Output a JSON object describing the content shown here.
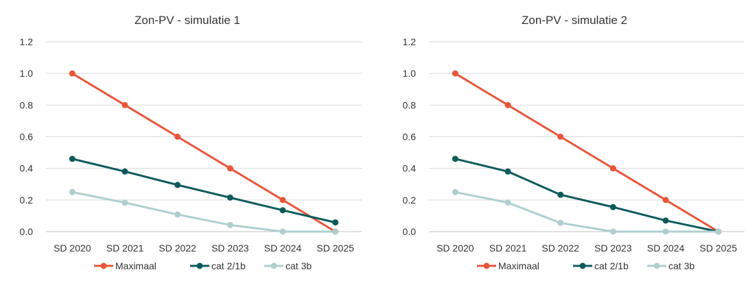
{
  "chart_data": [
    {
      "type": "line",
      "title": "Zon-PV - simulatie 1",
      "xlabel": "",
      "ylabel": "",
      "categories": [
        "SD 2020",
        "SD 2021",
        "SD 2022",
        "SD 2023",
        "SD 2024",
        "SD 2025"
      ],
      "y_ticks": [
        "0.0",
        "0.2",
        "0.4",
        "0.6",
        "0.8",
        "1.0",
        "1.2"
      ],
      "ylim": [
        0,
        1.2
      ],
      "grid": "horizontal",
      "legend_position": "bottom",
      "series": [
        {
          "name": "Maximaal",
          "color": "#e8553a",
          "values": [
            1.0,
            0.8,
            0.6,
            0.4,
            0.2,
            0.0
          ]
        },
        {
          "name": "cat 2/1b",
          "color": "#0d5a5b",
          "values": [
            0.46,
            0.38,
            0.295,
            0.215,
            0.135,
            0.058
          ]
        },
        {
          "name": "cat 3b",
          "color": "#aecfcd",
          "values": [
            0.25,
            0.183,
            0.108,
            0.042,
            0.0,
            0.0
          ]
        }
      ]
    },
    {
      "type": "line",
      "title": "Zon-PV - simulatie 2",
      "xlabel": "",
      "ylabel": "",
      "categories": [
        "SD 2020",
        "SD 2021",
        "SD 2022",
        "SD 2023",
        "SD 2024",
        "SD 2025"
      ],
      "y_ticks": [
        "0.0",
        "0.2",
        "0.4",
        "0.6",
        "0.8",
        "1.0",
        "1.2"
      ],
      "ylim": [
        0,
        1.2
      ],
      "grid": "horizontal",
      "legend_position": "bottom",
      "series": [
        {
          "name": "Maximaal",
          "color": "#e8553a",
          "values": [
            1.0,
            0.8,
            0.6,
            0.4,
            0.2,
            0.0
          ]
        },
        {
          "name": "cat 2/1b",
          "color": "#0d5a5b",
          "values": [
            0.46,
            0.38,
            0.233,
            0.155,
            0.07,
            0.0
          ]
        },
        {
          "name": "cat 3b",
          "color": "#aecfcd",
          "values": [
            0.25,
            0.183,
            0.055,
            0.0,
            0.0,
            0.0
          ]
        }
      ]
    }
  ]
}
